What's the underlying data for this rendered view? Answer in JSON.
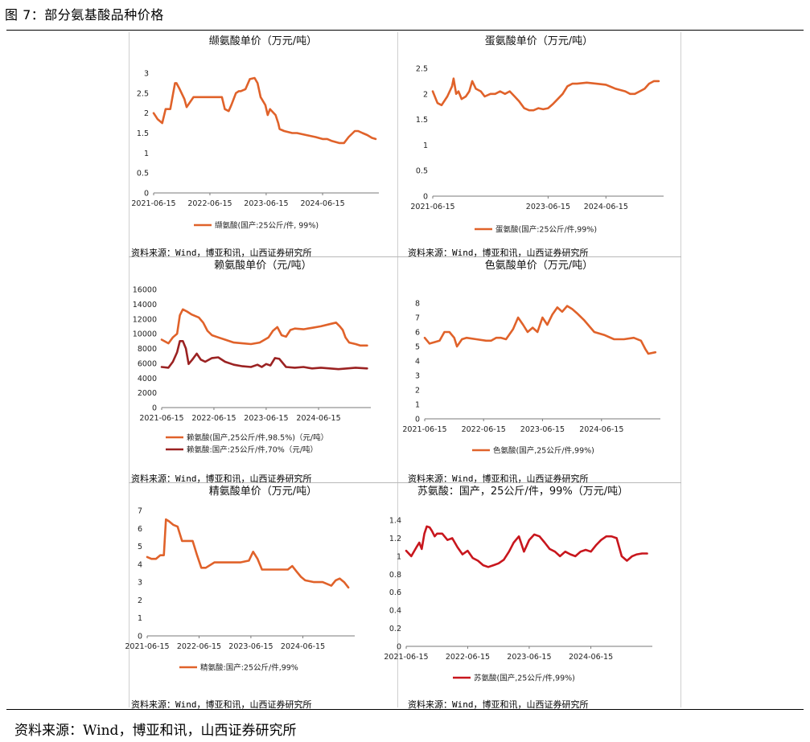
{
  "figure_title": "图 7：部分氨基酸品种价格",
  "page_source": "资料来源：Wind，博亚和讯，山西证券研究所",
  "chart_data": [
    {
      "type": "line",
      "title": "缬氨酸单价（万元/吨）",
      "ylim": [
        0,
        3
      ],
      "yticks": [
        0,
        0.5,
        1,
        1.5,
        2,
        2.5,
        3
      ],
      "ytick_labels": [
        "0",
        "0.5",
        "1",
        "1.5",
        "2",
        "2.5",
        "3"
      ],
      "xlim": [
        "2021-06-15",
        "2025-06-15"
      ],
      "xticks": [
        "2021-06-15",
        "2022-06-15",
        "2023-06-15",
        "2024-06-15"
      ],
      "series": [
        {
          "name": "缬氨酸(国产:25公斤/件, 99%)",
          "color": "#e0622a",
          "x": [
            "2021-06-15",
            "2021-07-10",
            "2021-08-10",
            "2021-09-01",
            "2021-09-10",
            "2021-10-01",
            "2021-10-20",
            "2021-11-01",
            "2021-11-10",
            "2021-12-01",
            "2022-01-01",
            "2022-01-15",
            "2022-03-01",
            "2022-06-01",
            "2022-09-01",
            "2022-09-20",
            "2022-10-15",
            "2022-11-01",
            "2022-12-01",
            "2022-12-20",
            "2023-01-01",
            "2023-02-01",
            "2023-03-01",
            "2023-04-01",
            "2023-04-20",
            "2023-05-10",
            "2023-06-10",
            "2023-06-25",
            "2023-07-10",
            "2023-08-15",
            "2023-09-01",
            "2023-09-10",
            "2023-10-10",
            "2023-12-01",
            "2024-01-01",
            "2024-03-01",
            "2024-05-01",
            "2024-06-15",
            "2024-07-15",
            "2024-08-15",
            "2024-10-01",
            "2024-11-01",
            "2024-12-01",
            "2025-01-10",
            "2025-02-01",
            "2025-03-01",
            "2025-04-01",
            "2025-05-01",
            "2025-05-25"
          ],
          "values": [
            2.0,
            1.85,
            1.75,
            2.1,
            2.1,
            2.1,
            2.5,
            2.75,
            2.75,
            2.6,
            2.35,
            2.15,
            2.4,
            2.4,
            2.4,
            2.1,
            2.05,
            2.2,
            2.5,
            2.55,
            2.55,
            2.6,
            2.85,
            2.88,
            2.75,
            2.4,
            2.2,
            1.95,
            2.1,
            1.95,
            1.75,
            1.6,
            1.55,
            1.5,
            1.5,
            1.45,
            1.4,
            1.35,
            1.35,
            1.3,
            1.25,
            1.25,
            1.4,
            1.55,
            1.55,
            1.5,
            1.45,
            1.38,
            1.35
          ]
        }
      ],
      "source": "资料来源：Wind，博亚和讯，山西证券研究所"
    },
    {
      "type": "line",
      "title": "蛋氨酸单价（万元/吨）",
      "ylim": [
        0,
        2.5
      ],
      "yticks": [
        0,
        0.5,
        1,
        1.5,
        2,
        2.5
      ],
      "ytick_labels": [
        "0",
        "0.5",
        "1",
        "1.5",
        "2",
        "2.5"
      ],
      "xlim": [
        "2021-06-15",
        "2025-06-15"
      ],
      "xticks": [
        "2021-06-15",
        "2023-06-15",
        "2024-06-15"
      ],
      "series": [
        {
          "name": "蛋氨酸(国产:25公斤/件,99%)",
          "color": "#e0622a",
          "x": [
            "2021-06-15",
            "2021-07-15",
            "2021-08-10",
            "2021-09-15",
            "2021-10-15",
            "2021-10-25",
            "2021-11-10",
            "2021-11-25",
            "2021-12-15",
            "2022-01-10",
            "2022-02-01",
            "2022-02-20",
            "2022-03-15",
            "2022-04-15",
            "2022-05-10",
            "2022-06-15",
            "2022-07-15",
            "2022-08-15",
            "2022-09-15",
            "2022-10-15",
            "2022-11-15",
            "2022-12-15",
            "2023-01-15",
            "2023-02-15",
            "2023-03-15",
            "2023-04-15",
            "2023-05-15",
            "2023-06-15",
            "2023-07-15",
            "2023-08-15",
            "2023-09-15",
            "2023-10-15",
            "2023-11-15",
            "2023-12-15",
            "2024-02-15",
            "2024-04-15",
            "2024-06-15",
            "2024-08-15",
            "2024-10-15",
            "2024-11-15",
            "2024-12-15",
            "2025-01-15",
            "2025-02-15",
            "2025-03-15",
            "2025-04-15",
            "2025-05-15"
          ],
          "values": [
            2.05,
            1.82,
            1.78,
            1.95,
            2.15,
            2.3,
            2.0,
            2.05,
            1.9,
            1.95,
            2.05,
            2.25,
            2.1,
            2.05,
            1.95,
            2.0,
            2.0,
            2.05,
            2.0,
            2.05,
            1.95,
            1.85,
            1.72,
            1.68,
            1.68,
            1.72,
            1.7,
            1.72,
            1.8,
            1.9,
            2.0,
            2.15,
            2.2,
            2.2,
            2.22,
            2.2,
            2.18,
            2.1,
            2.05,
            2.0,
            2.0,
            2.05,
            2.1,
            2.2,
            2.25,
            2.25
          ]
        }
      ],
      "source": "资料来源：Wind，博亚和讯，山西证券研究所"
    },
    {
      "type": "line",
      "title": "赖氨酸单价（元/吨）",
      "ylim": [
        0,
        16000
      ],
      "yticks": [
        0,
        2000,
        4000,
        6000,
        8000,
        10000,
        12000,
        14000,
        16000
      ],
      "ytick_labels": [
        "0",
        "2000",
        "4000",
        "6000",
        "8000",
        "10000",
        "12000",
        "14000",
        "16000"
      ],
      "xlim": [
        "2021-06-15",
        "2025-06-15"
      ],
      "xticks": [
        "2021-06-15",
        "2022-06-15",
        "2023-06-15",
        "2024-06-15"
      ],
      "series": [
        {
          "name": "赖氨酸(国产,25公斤/件,98.5%)（元/吨）",
          "color": "#e0622a",
          "x": [
            "2021-06-15",
            "2021-08-01",
            "2021-09-01",
            "2021-10-01",
            "2021-10-20",
            "2021-11-10",
            "2021-12-10",
            "2022-01-10",
            "2022-03-01",
            "2022-04-01",
            "2022-05-01",
            "2022-06-01",
            "2022-07-15",
            "2022-09-01",
            "2022-11-01",
            "2023-01-01",
            "2023-03-01",
            "2023-05-01",
            "2023-07-01",
            "2023-08-01",
            "2023-09-01",
            "2023-10-01",
            "2023-11-01",
            "2023-12-01",
            "2024-01-01",
            "2024-03-01",
            "2024-05-01",
            "2024-07-01",
            "2024-09-01",
            "2024-10-15",
            "2024-11-10",
            "2024-12-01",
            "2024-12-20",
            "2025-01-15",
            "2025-03-01",
            "2025-04-01",
            "2025-05-20"
          ],
          "values": [
            9200,
            8700,
            9500,
            10000,
            12500,
            13300,
            13000,
            12600,
            12200,
            11500,
            10400,
            9800,
            9500,
            9200,
            8800,
            8700,
            8600,
            8800,
            9500,
            10400,
            10900,
            9800,
            9600,
            10500,
            10700,
            10600,
            10800,
            11000,
            11300,
            11500,
            11000,
            10500,
            9500,
            8800,
            8600,
            8400,
            8400
          ]
        },
        {
          "name": "赖氨酸:国产:25公斤/件,70%（元/吨）",
          "color": "#9b2222",
          "x": [
            "2021-06-15",
            "2021-08-01",
            "2021-09-01",
            "2021-10-01",
            "2021-10-20",
            "2021-11-10",
            "2021-12-01",
            "2021-12-20",
            "2022-01-15",
            "2022-02-15",
            "2022-03-15",
            "2022-04-15",
            "2022-06-01",
            "2022-07-15",
            "2022-09-01",
            "2022-11-01",
            "2023-01-01",
            "2023-03-01",
            "2023-04-15",
            "2023-05-15",
            "2023-06-15",
            "2023-07-15",
            "2023-08-15",
            "2023-09-15",
            "2023-11-01",
            "2024-01-01",
            "2024-03-01",
            "2024-05-01",
            "2024-07-01",
            "2024-09-01",
            "2024-11-01",
            "2025-01-01",
            "2025-03-01",
            "2025-05-20"
          ],
          "values": [
            5500,
            5400,
            6200,
            7500,
            9000,
            9000,
            8000,
            5900,
            6500,
            7300,
            6500,
            6200,
            6700,
            6800,
            6200,
            5800,
            5600,
            5500,
            5800,
            5500,
            5900,
            5700,
            6700,
            6600,
            5500,
            5400,
            5500,
            5300,
            5400,
            5300,
            5200,
            5300,
            5400,
            5300
          ]
        }
      ],
      "source": "资料来源：Wind，博亚和讯，山西证券研究所"
    },
    {
      "type": "line",
      "title": "色氨酸单价（万元/吨）",
      "ylim": [
        0,
        8
      ],
      "yticks": [
        0,
        1,
        2,
        3,
        4,
        5,
        6,
        7,
        8
      ],
      "ytick_labels": [
        "0",
        "1",
        "2",
        "3",
        "4",
        "5",
        "6",
        "7",
        "8"
      ],
      "xlim": [
        "2021-06-15",
        "2025-06-15"
      ],
      "xticks": [
        "2021-06-15",
        "2022-06-15",
        "2023-06-15",
        "2024-06-15"
      ],
      "series": [
        {
          "name": "色氨酸(国产,25公斤/件,99%)",
          "color": "#e0622a",
          "x": [
            "2021-06-15",
            "2021-07-15",
            "2021-08-15",
            "2021-09-15",
            "2021-10-15",
            "2021-11-15",
            "2021-12-15",
            "2022-01-01",
            "2022-02-01",
            "2022-03-01",
            "2022-05-01",
            "2022-07-01",
            "2022-08-01",
            "2022-09-01",
            "2022-10-01",
            "2022-11-01",
            "2022-12-15",
            "2023-01-15",
            "2023-02-15",
            "2023-03-15",
            "2023-04-15",
            "2023-05-15",
            "2023-06-15",
            "2023-07-15",
            "2023-08-15",
            "2023-09-15",
            "2023-10-15",
            "2023-11-15",
            "2023-12-15",
            "2024-01-15",
            "2024-03-01",
            "2024-05-01",
            "2024-07-01",
            "2024-09-01",
            "2024-11-01",
            "2025-01-01",
            "2025-02-15",
            "2025-03-15",
            "2025-04-01",
            "2025-05-15"
          ],
          "values": [
            5.6,
            5.2,
            5.3,
            5.4,
            6.0,
            6.0,
            5.6,
            5.0,
            5.5,
            5.6,
            5.5,
            5.4,
            5.4,
            5.6,
            5.6,
            5.5,
            6.2,
            7.0,
            6.5,
            6.0,
            6.3,
            6.0,
            7.0,
            6.5,
            7.2,
            7.7,
            7.4,
            7.8,
            7.6,
            7.3,
            6.8,
            6.0,
            5.8,
            5.5,
            5.5,
            5.6,
            5.4,
            4.8,
            4.5,
            4.6
          ]
        }
      ],
      "source": "资料来源：Wind，博亚和讯，山西证券研究所"
    },
    {
      "type": "line",
      "title": "精氨酸单价（万元/吨）",
      "ylim": [
        0,
        7
      ],
      "yticks": [
        0,
        1,
        2,
        3,
        4,
        5,
        6,
        7
      ],
      "ytick_labels": [
        "0",
        "1",
        "2",
        "3",
        "4",
        "5",
        "6",
        "7"
      ],
      "xlim": [
        "2021-06-15",
        "2025-06-15"
      ],
      "xticks": [
        "2021-06-15",
        "2022-06-15",
        "2023-06-15",
        "2024-06-15"
      ],
      "series": [
        {
          "name": "精氨酸:国产:25公斤/件,99%",
          "color": "#e0622a",
          "x": [
            "2021-06-15",
            "2021-07-15",
            "2021-08-15",
            "2021-09-15",
            "2021-10-10",
            "2021-10-25",
            "2021-11-15",
            "2021-12-15",
            "2022-01-15",
            "2022-02-15",
            "2022-04-15",
            "2022-05-01",
            "2022-06-01",
            "2022-07-01",
            "2022-08-01",
            "2022-10-01",
            "2022-12-01",
            "2023-02-01",
            "2023-04-01",
            "2023-06-01",
            "2023-07-01",
            "2023-08-01",
            "2023-09-01",
            "2023-11-01",
            "2024-01-01",
            "2024-03-01",
            "2024-04-01",
            "2024-05-01",
            "2024-06-01",
            "2024-07-01",
            "2024-09-01",
            "2024-11-01",
            "2025-01-01",
            "2025-02-01",
            "2025-03-01",
            "2025-04-01",
            "2025-05-01"
          ],
          "values": [
            4.4,
            4.3,
            4.3,
            4.5,
            4.5,
            6.5,
            6.4,
            6.2,
            6.1,
            5.3,
            5.3,
            5.3,
            4.5,
            3.8,
            3.8,
            4.1,
            4.1,
            4.1,
            4.1,
            4.2,
            4.7,
            4.3,
            3.7,
            3.7,
            3.7,
            3.7,
            3.9,
            3.6,
            3.3,
            3.1,
            3.0,
            3.0,
            2.8,
            3.1,
            3.2,
            3.0,
            2.7
          ]
        }
      ],
      "source": "资料来源：Wind，博亚和讯，山西证券研究所"
    },
    {
      "type": "line",
      "title": "苏氨酸：国产，25公斤/件，99%（万元/吨）",
      "ylim": [
        0,
        1.4
      ],
      "yticks": [
        0,
        0.2,
        0.4,
        0.6,
        0.8,
        1,
        1.2,
        1.4
      ],
      "ytick_labels": [
        "0",
        "0.2",
        "0.4",
        "0.6",
        "0.8",
        "1",
        "1.2",
        "1.4"
      ],
      "xlim": [
        "2021-06-15",
        "2025-06-15"
      ],
      "xticks": [
        "2021-06-15",
        "2022-06-15",
        "2023-06-15",
        "2024-06-15"
      ],
      "series": [
        {
          "name": "苏氨酸(国产,25公斤/件,99%)",
          "color": "#c8161d",
          "x": [
            "2021-06-15",
            "2021-07-15",
            "2021-08-15",
            "2021-09-01",
            "2021-09-15",
            "2021-10-01",
            "2021-10-15",
            "2021-11-01",
            "2021-11-15",
            "2021-12-01",
            "2021-12-15",
            "2022-01-15",
            "2022-02-15",
            "2022-03-15",
            "2022-04-15",
            "2022-05-15",
            "2022-06-15",
            "2022-07-15",
            "2022-08-15",
            "2022-09-15",
            "2022-10-15",
            "2022-11-15",
            "2022-12-15",
            "2023-01-15",
            "2023-02-15",
            "2023-03-15",
            "2023-04-15",
            "2023-05-15",
            "2023-06-15",
            "2023-07-15",
            "2023-08-15",
            "2023-09-15",
            "2023-10-15",
            "2023-11-15",
            "2023-12-15",
            "2024-01-15",
            "2024-02-15",
            "2024-03-15",
            "2024-04-15",
            "2024-05-15",
            "2024-06-15",
            "2024-07-15",
            "2024-08-15",
            "2024-09-15",
            "2024-10-15",
            "2024-11-15",
            "2024-12-15",
            "2025-01-15",
            "2025-02-15",
            "2025-03-15",
            "2025-04-15",
            "2025-05-15"
          ],
          "values": [
            1.06,
            1.0,
            1.1,
            1.15,
            1.08,
            1.25,
            1.33,
            1.32,
            1.28,
            1.22,
            1.25,
            1.25,
            1.18,
            1.2,
            1.1,
            1.02,
            1.06,
            0.98,
            0.95,
            0.9,
            0.88,
            0.9,
            0.92,
            0.96,
            1.05,
            1.15,
            1.22,
            1.05,
            1.18,
            1.24,
            1.22,
            1.15,
            1.08,
            1.05,
            1.0,
            1.05,
            1.02,
            1.0,
            1.05,
            1.07,
            1.05,
            1.12,
            1.18,
            1.22,
            1.22,
            1.2,
            1.0,
            0.95,
            1.0,
            1.02,
            1.03,
            1.03
          ]
        }
      ],
      "source": "资料来源：Wind，博亚和讯，山西证券研究所"
    }
  ]
}
